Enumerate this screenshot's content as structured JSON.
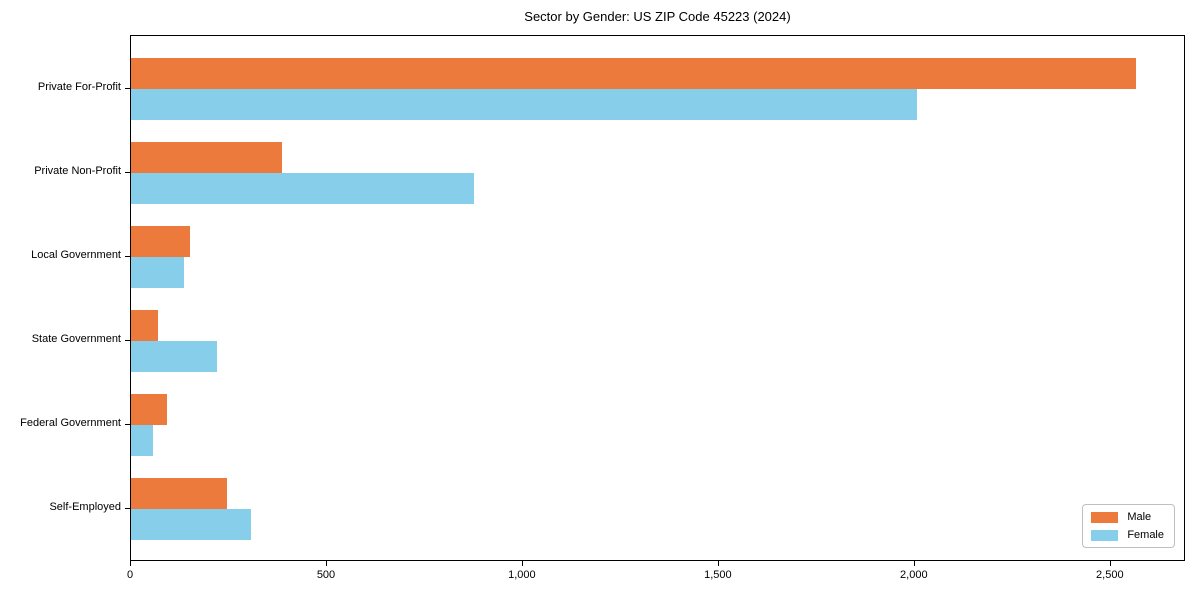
{
  "title": "Sector by Gender: US ZIP Code 45223 (2024)",
  "chart_data": {
    "type": "bar",
    "orientation": "horizontal",
    "title": "Sector by Gender: US ZIP Code 45223 (2024)",
    "categories": [
      "Private For-Profit",
      "Private Non-Profit",
      "Local Government",
      "State Government",
      "Federal Government",
      "Self-Employed"
    ],
    "series": [
      {
        "name": "Male",
        "color": "#EC7A3C",
        "values": [
          2564,
          385,
          150,
          70,
          93,
          244
        ]
      },
      {
        "name": "Female",
        "color": "#87CEEB",
        "values": [
          2005,
          875,
          136,
          220,
          55,
          305
        ]
      }
    ],
    "xlabel": "",
    "ylabel": "",
    "xlim": [
      0,
      2692
    ],
    "xticks": [
      0,
      500,
      1000,
      1500,
      2000,
      2500
    ],
    "xtick_labels": [
      "0",
      "500",
      "1,000",
      "1,500",
      "2,000",
      "2,500"
    ],
    "grid": false,
    "legend_position": "lower right",
    "spine_box": true
  }
}
